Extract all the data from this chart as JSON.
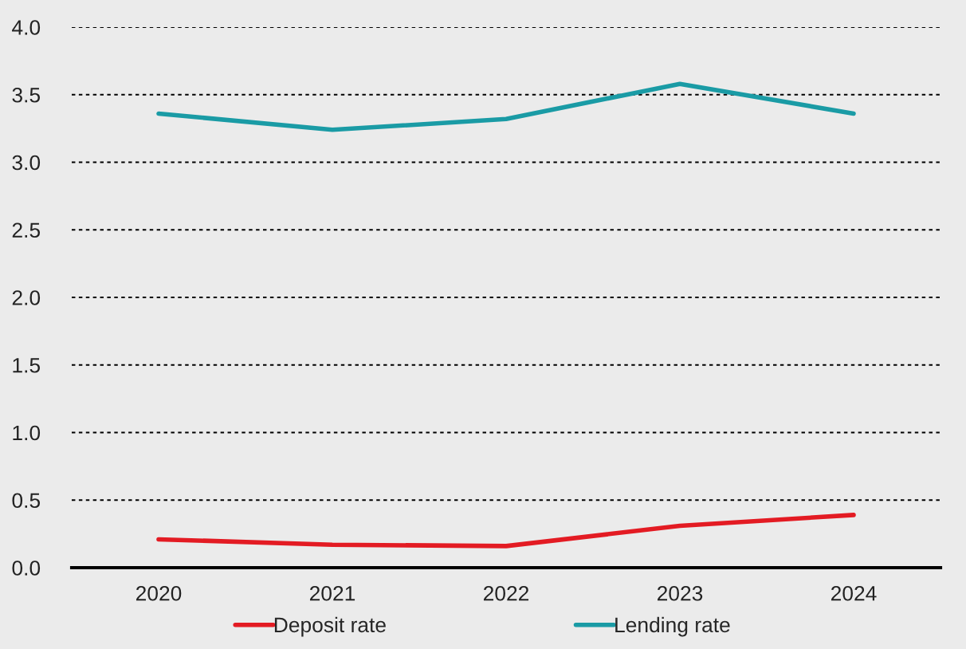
{
  "chart_data": {
    "type": "line",
    "categories": [
      "2020",
      "2021",
      "2022",
      "2023",
      "2024"
    ],
    "series": [
      {
        "name": "Deposit rate",
        "color": "#e31b23",
        "values": [
          0.21,
          0.17,
          0.16,
          0.31,
          0.39
        ]
      },
      {
        "name": "Lending rate",
        "color": "#1a9ba5",
        "values": [
          3.36,
          3.24,
          3.32,
          3.58,
          3.36
        ]
      }
    ],
    "ylim": [
      0,
      4.0
    ],
    "yticks": [
      {
        "value": 0,
        "label": "0.0"
      },
      {
        "value": 0.5,
        "label": "0.5"
      },
      {
        "value": 1.0,
        "label": "1.0"
      },
      {
        "value": 1.5,
        "label": "1.5"
      },
      {
        "value": 2.0,
        "label": "2.0"
      },
      {
        "value": 2.5,
        "label": "2.5"
      },
      {
        "value": 3.0,
        "label": "3.0"
      },
      {
        "value": 3.5,
        "label": "3.5"
      },
      {
        "value": 4.0,
        "label": "4.0"
      }
    ],
    "grid": "y",
    "legend": "bottom",
    "marker": "none",
    "line_style": "solid"
  }
}
